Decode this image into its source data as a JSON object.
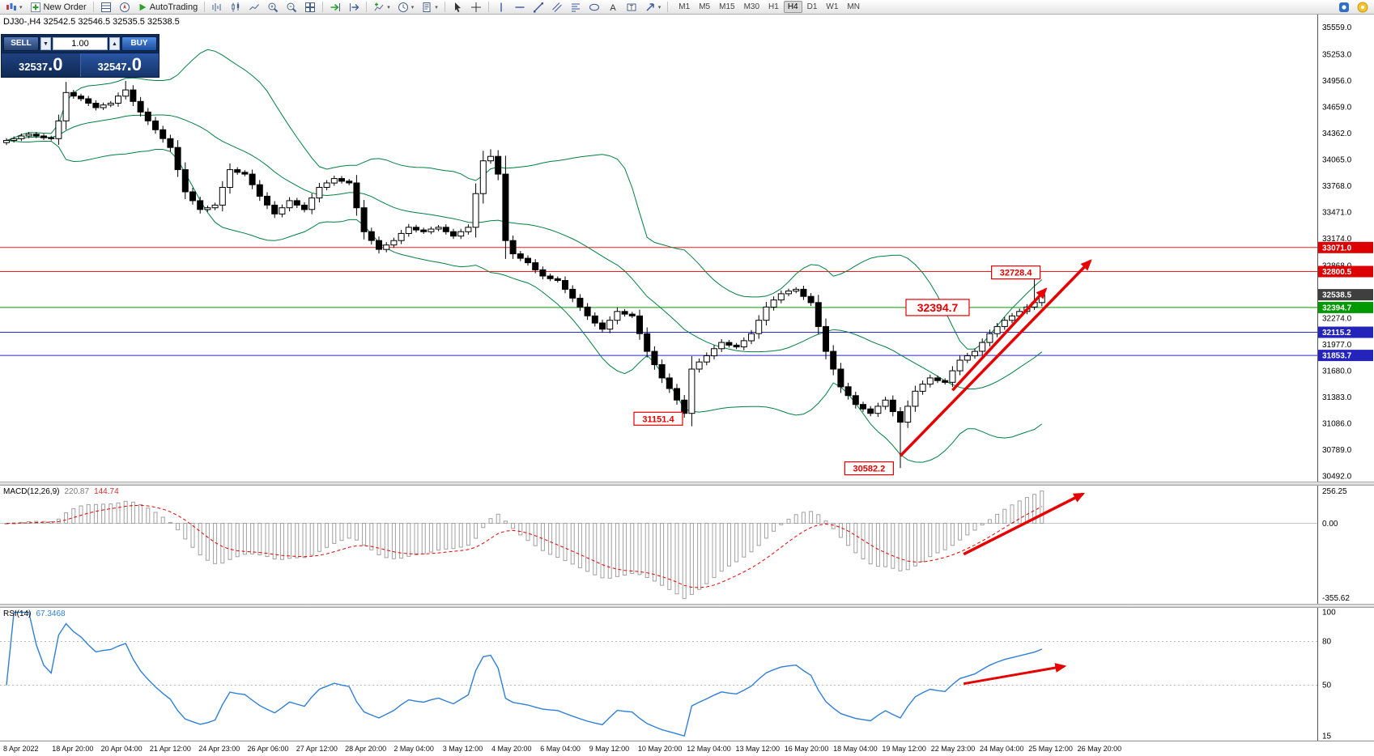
{
  "toolbar": {
    "new_order_label": "New Order",
    "autotrading_label": "AutoTrading",
    "timeframes": [
      "M1",
      "M5",
      "M15",
      "M30",
      "H1",
      "H4",
      "D1",
      "W1",
      "MN"
    ],
    "active_timeframe": "H4",
    "dropdown_glyph": "▾",
    "text_icon_glyph": "A",
    "label_icon_glyph": "T"
  },
  "one_click": {
    "sell_label": "SELL",
    "buy_label": "BUY",
    "volume": "1.00",
    "spinner_down_glyph": "▼",
    "spinner_up_glyph": "▲",
    "sell_price_main": "32537",
    "sell_price_big": ".0",
    "buy_price_main": "32547",
    "buy_price_big": ".0"
  },
  "chart_header": "DJ30-,H4  32542.5 32546.5 32535.5 32538.5",
  "chart_data": {
    "type": "candlestick",
    "symbol": "DJ30-",
    "timeframe": "H4",
    "accent_red": "#e60000",
    "background": "#ffffff",
    "price_scale": {
      "max": 35700,
      "min": 30430
    },
    "y_ticks": [
      35559.0,
      35253.0,
      34956.0,
      34659.0,
      34362.0,
      34065.0,
      33768.0,
      33471.0,
      33174.0,
      32868.0,
      32571.0,
      32274.0,
      31977.0,
      31680.0,
      31383.0,
      31086.0,
      30789.0,
      30492.0
    ],
    "closes": [
      34280,
      34300,
      34330,
      34350,
      34330,
      34310,
      34300,
      34500,
      34820,
      34780,
      34750,
      34700,
      34650,
      34680,
      34700,
      34780,
      34850,
      34720,
      34600,
      34500,
      34400,
      34300,
      34200,
      33950,
      33700,
      33600,
      33500,
      33520,
      33550,
      33750,
      33950,
      33920,
      33900,
      33780,
      33650,
      33550,
      33450,
      33520,
      33600,
      33550,
      33500,
      33630,
      33750,
      33800,
      33850,
      33820,
      33800,
      33520,
      33250,
      33150,
      33050,
      33100,
      33150,
      33230,
      33300,
      33270,
      33250,
      33280,
      33300,
      33250,
      33200,
      33250,
      33300,
      33680,
      34050,
      34100,
      33900,
      33150,
      33000,
      32950,
      32900,
      32820,
      32750,
      32720,
      32700,
      32600,
      32500,
      32400,
      32300,
      32220,
      32150,
      32250,
      32350,
      32320,
      32300,
      32100,
      31900,
      31750,
      31600,
      31480,
      31350,
      31200,
      31700,
      31780,
      31850,
      31930,
      32000,
      31970,
      31950,
      32020,
      32100,
      32250,
      32400,
      32480,
      32550,
      32580,
      32600,
      32520,
      32450,
      32180,
      31900,
      31700,
      31500,
      31400,
      31300,
      31250,
      31200,
      31280,
      31350,
      31220,
      31100,
      31280,
      31450,
      31530,
      31600,
      31570,
      31550,
      31680,
      31800,
      31850,
      31900,
      32000,
      32100,
      32180,
      32250,
      32300,
      32350,
      32400,
      32450,
      32538.5
    ],
    "high_overrides": {
      "8": 34940,
      "16": 34952,
      "65": 34180,
      "138": 32728.4
    },
    "low_overrides": {
      "91": 31151.4,
      "120": 30582.2
    },
    "bollinger": {
      "period": 20,
      "deviation": 2,
      "color": "#008040"
    },
    "levels": [
      {
        "value": 33071.0,
        "color": "#ff1a1a",
        "badge": "#dd0000"
      },
      {
        "value": 32800.5,
        "color": "#ff1a1a",
        "badge": "#dd0000"
      },
      {
        "value": 32394.7,
        "color": "#00a000",
        "badge": "#009a00"
      },
      {
        "value": 32115.2,
        "color": "#2929cc",
        "badge": "#2424bb"
      },
      {
        "value": 31853.7,
        "color": "#2929cc",
        "badge": "#2424bb"
      }
    ],
    "current_price": 32538.5,
    "current_badge": "#3f3f3f",
    "annotations": [
      {
        "text": "32728.4",
        "i": 135.5,
        "price": 32790,
        "size": "small"
      },
      {
        "text": "32394.7",
        "i": 125,
        "price": 32394.7,
        "size": "large"
      },
      {
        "text": "31151.4",
        "i": 87.5,
        "price": 31140,
        "size": "small"
      },
      {
        "text": "30582.2",
        "i": 115.8,
        "price": 30580,
        "size": "small"
      }
    ],
    "arrows": [
      {
        "pane": "price",
        "from_i": 120,
        "from_v": 30720,
        "to_i": 145.5,
        "to_v": 32920
      },
      {
        "pane": "price",
        "from_i": 127,
        "from_v": 31460,
        "to_i": 139.5,
        "to_v": 32600
      },
      {
        "pane": "macd",
        "from_i": 128.5,
        "from_fy": 0.58,
        "to_i": 144.5,
        "to_fy": 0.07
      },
      {
        "pane": "rsi",
        "from_i": 128.5,
        "from_v": 51,
        "to_i": 142,
        "to_v": 63
      }
    ],
    "indicators": {
      "macd": {
        "title": "MACD(12,26,9)",
        "value_main": "220.87",
        "value_signal": "144.74",
        "params": [
          12,
          26,
          9
        ],
        "ticks": [
          "256.25",
          "0.00",
          "-355.62"
        ]
      },
      "rsi": {
        "title": "RSI(14)",
        "value": "67.3468",
        "period": 14,
        "color": "#2f7fd7",
        "ticks": [
          100,
          80,
          50,
          15
        ],
        "levels": [
          80,
          50
        ]
      }
    },
    "x_labels": [
      "8 Apr 2022",
      "18 Apr 20:00",
      "20 Apr 04:00",
      "21 Apr 12:00",
      "24 Apr 23:00",
      "26 Apr 06:00",
      "27 Apr 12:00",
      "28 Apr 20:00",
      "2 May 04:00",
      "3 May 12:00",
      "4 May 20:00",
      "6 May 04:00",
      "9 May 12:00",
      "10 May 20:00",
      "12 May 04:00",
      "13 May 12:00",
      "16 May 20:00",
      "18 May 04:00",
      "19 May 12:00",
      "22 May 23:00",
      "24 May 04:00",
      "25 May 12:00",
      "26 May 20:00"
    ]
  }
}
